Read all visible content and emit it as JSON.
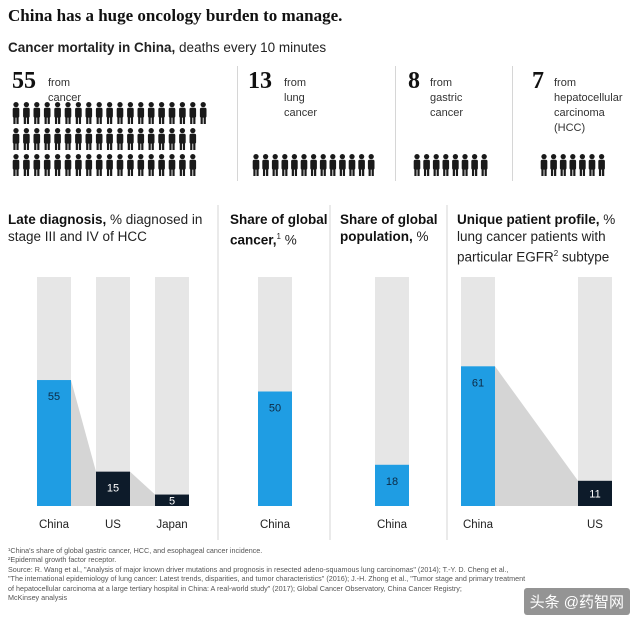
{
  "title": "China has a huge oncology burden to manage.",
  "subtitle": {
    "bold": "Cancer mortality in China,",
    "rest": " deaths every 10 minutes"
  },
  "stats": [
    {
      "number": "55",
      "label": [
        "from cancer"
      ]
    },
    {
      "number": "13",
      "label": [
        "from",
        "lung",
        "cancer"
      ]
    },
    {
      "number": "8",
      "label": [
        "from",
        "gastric",
        "cancer"
      ]
    },
    {
      "number": "7",
      "label": [
        "from",
        "hepatocellular",
        "carcinoma",
        "(HCC)"
      ]
    }
  ],
  "colors": {
    "china": "#1f9de3",
    "other": "#0d1b2a",
    "track": "#e6e6e6",
    "person": "#1a1a1a"
  },
  "chart_data": [
    {
      "type": "bar",
      "title_bold": "Late diagnosis,",
      "title_rest": " % diagnosed in stage III and IV of HCC",
      "categories": [
        "China",
        "US",
        "Japan"
      ],
      "values": [
        55,
        15,
        5
      ],
      "ylim": [
        0,
        100
      ]
    },
    {
      "type": "bar",
      "title_bold": "Share of global cancer,",
      "title_sup": "1",
      "title_rest": " %",
      "categories": [
        "China"
      ],
      "values": [
        50
      ],
      "ylim": [
        0,
        100
      ]
    },
    {
      "type": "bar",
      "title_bold": "Share of global population,",
      "title_rest": " %",
      "categories": [
        "China"
      ],
      "values": [
        18
      ],
      "ylim": [
        0,
        100
      ]
    },
    {
      "type": "bar",
      "title_bold": "Unique patient profile,",
      "title_rest": " % lung cancer patients with particular EGFR",
      "title_sup": "2",
      "title_end": " subtype",
      "categories": [
        "China",
        "US"
      ],
      "values": [
        61,
        11
      ],
      "ylim": [
        0,
        100
      ]
    }
  ],
  "footnotes": [
    "¹China's share of global gastric cancer, HCC, and esophageal cancer incidence.",
    "²Epidermal growth factor receptor.",
    "Source: R. Wang et al., \"Analysis of major known driver mutations and prognosis in resected adeno-squamous lung carcinomas\" (2014); T.-Y. D. Cheng et al.,",
    "\"The international epidemiology of lung cancer: Latest trends, disparities, and tumor characteristics\" (2016); J.-H. Zhong et al., \"Tumor stage and primary treatment",
    "of hepatocellular carcinoma at a large tertiary hospital in China: A real-world study\" (2017); Global Cancer Observatory, China Cancer Registry;",
    "McKinsey analysis"
  ],
  "watermark": "头条 @药智网"
}
